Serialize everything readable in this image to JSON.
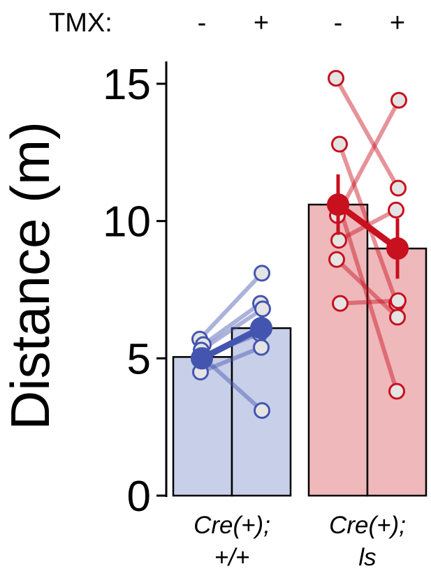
{
  "chart_data": {
    "type": "bar",
    "ylabel": "Distance (m)",
    "ylim": [
      0,
      15
    ],
    "yticks": [
      "0",
      "5",
      "10",
      "15"
    ],
    "condition_label": "TMX:",
    "conditions": [
      "-",
      "+",
      "-",
      "+"
    ],
    "groups": [
      {
        "label_line1": "Cre(+);",
        "label_line2": "+/+",
        "color": "#4455b0",
        "bar_fill": "#c8cfe8",
        "bars": [
          5.05,
          6.1
        ],
        "means": [
          5.0,
          6.1
        ],
        "errors": [
          0.3,
          0.45
        ],
        "paired_points": [
          [
            5.7,
            8.1
          ],
          [
            5.5,
            7.0
          ],
          [
            5.3,
            6.8
          ],
          [
            5.1,
            5.9
          ],
          [
            4.5,
            5.4
          ],
          [
            5.0,
            3.1
          ]
        ]
      },
      {
        "label_line1": "Cre(+);",
        "label_line2": "ls",
        "color": "#c8101e",
        "bar_fill": "#efb8bb",
        "bars": [
          10.6,
          9.0
        ],
        "means": [
          10.6,
          9.0
        ],
        "errors": [
          1.1,
          1.1
        ],
        "paired_points": [
          [
            15.2,
            11.2
          ],
          [
            12.8,
            7.0
          ],
          [
            10.2,
            14.4
          ],
          [
            9.3,
            10.4
          ],
          [
            8.6,
            6.5
          ],
          [
            7.0,
            7.1
          ],
          [
            10.7,
            3.8
          ]
        ]
      }
    ]
  }
}
